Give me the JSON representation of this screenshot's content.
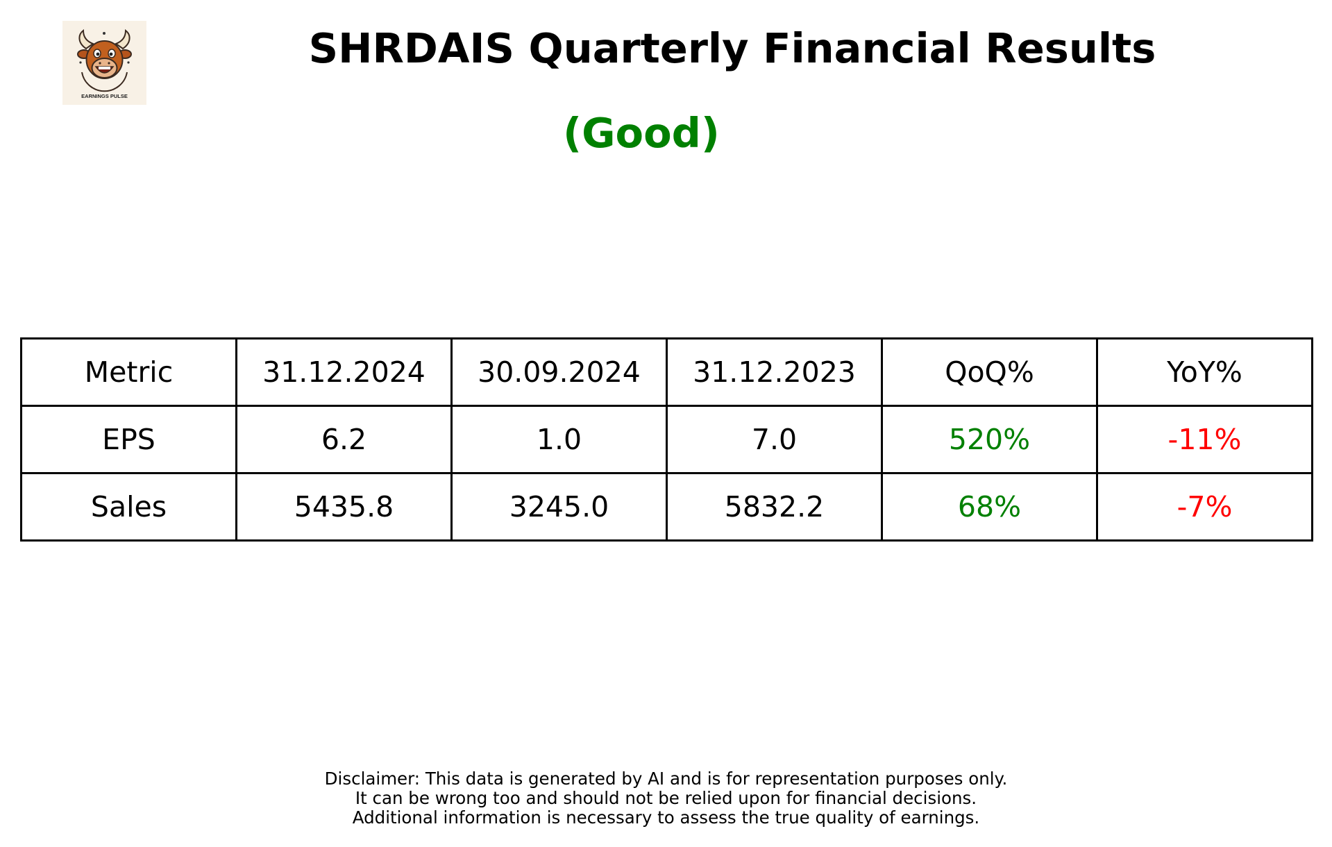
{
  "logo": {
    "text": "EARNINGS PULSE",
    "icon": "bull-mascot-icon"
  },
  "title": "SHRDAIS Quarterly Financial Results",
  "rating": {
    "label": "(Good)",
    "color": "#008000"
  },
  "colors": {
    "positive": "#008000",
    "negative": "#ff0000",
    "text": "#000000"
  },
  "table": {
    "headers": [
      "Metric",
      "31.12.2024",
      "30.09.2024",
      "31.12.2023",
      "QoQ%",
      "YoY%"
    ],
    "rows": [
      {
        "metric": "EPS",
        "q_dec_2024": "6.2",
        "q_sep_2024": "1.0",
        "q_dec_2023": "7.0",
        "qoq": "520%",
        "yoy": "-11%"
      },
      {
        "metric": "Sales",
        "q_dec_2024": "5435.8",
        "q_sep_2024": "3245.0",
        "q_dec_2023": "5832.2",
        "qoq": "68%",
        "yoy": "-7%"
      }
    ]
  },
  "disclaimer": [
    "Disclaimer: This data is generated by AI and is for representation purposes only.",
    "It can be wrong too and should not be relied upon for financial decisions.",
    "Additional information is necessary to assess the true quality of earnings."
  ]
}
